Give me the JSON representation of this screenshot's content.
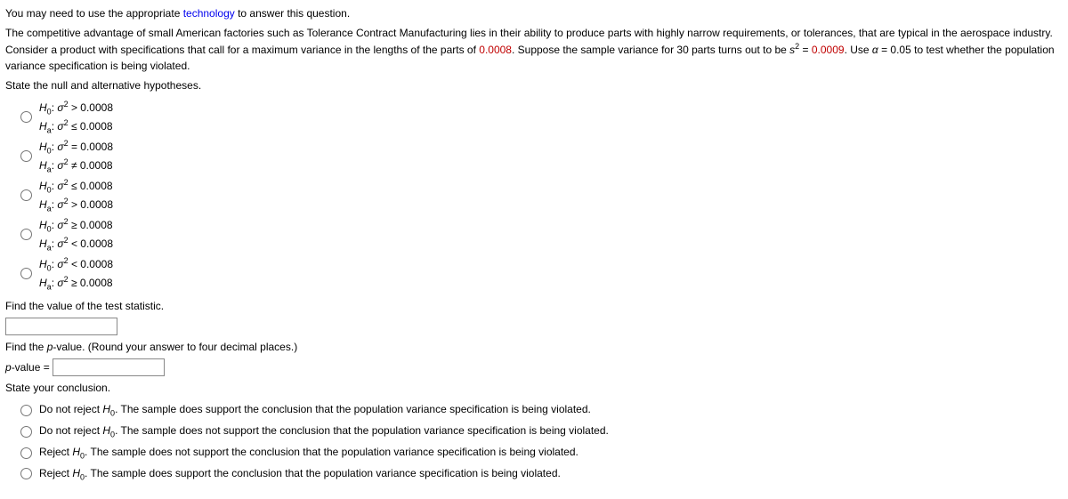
{
  "intro": {
    "line1a": "You may need to use the appropriate ",
    "tech": "technology",
    "line1b": " to answer this question.",
    "line2a": "The competitive advantage of small American factories such as Tolerance Contract Manufacturing lies in their ability to produce parts with highly narrow requirements, or tolerances, that are typical in the aerospace industry. Consider a product with specifications that call for a maximum variance in the lengths of the parts of ",
    "val1": "0.0008",
    "line2b": ". Suppose the sample variance for 30 parts turns out to be ",
    "svar_left": "s",
    "svar_sup": "2",
    "svar_eq": " = ",
    "val2": "0.0009",
    "line2c": ". Use ",
    "alpha_sym": "α",
    "alpha_eq": " = 0.05 to test whether the population variance specification is being violated."
  },
  "q1": "State the null and alternative hypotheses.",
  "sigma": "σ",
  "sup2": "2",
  "H0": "H",
  "H0s": "0",
  "Ha": "H",
  "Has": "a",
  "opts": [
    {
      "h0": " > 0.0008",
      "ha": " ≤ 0.0008"
    },
    {
      "h0": " = 0.0008",
      "ha": " ≠ 0.0008"
    },
    {
      "h0": " ≤ 0.0008",
      "ha": " > 0.0008"
    },
    {
      "h0": " ≥ 0.0008",
      "ha": " < 0.0008"
    },
    {
      "h0": " < 0.0008",
      "ha": " ≥ 0.0008"
    }
  ],
  "q2": "Find the value of the test statistic.",
  "q3a": "Find the ",
  "q3p": "p",
  "q3b": "-value. (Round your answer to four decimal places.)",
  "pv_label_a": "p",
  "pv_label_b": "-value = ",
  "q4": "State your conclusion.",
  "concl": [
    {
      "a": "Do not reject ",
      "b": ". The sample does support the conclusion that the population variance specification is being violated."
    },
    {
      "a": "Do not reject ",
      "b": ". The sample does not support the conclusion that the population variance specification is being violated."
    },
    {
      "a": "Reject ",
      "b": ". The sample does not support the conclusion that the population variance specification is being violated."
    },
    {
      "a": "Reject ",
      "b": ". The sample does support the conclusion that the population variance specification is being violated."
    }
  ],
  "colors": {
    "link": "#0000ee",
    "red": "#c00000",
    "text": "#000000",
    "bg": "#ffffff"
  }
}
